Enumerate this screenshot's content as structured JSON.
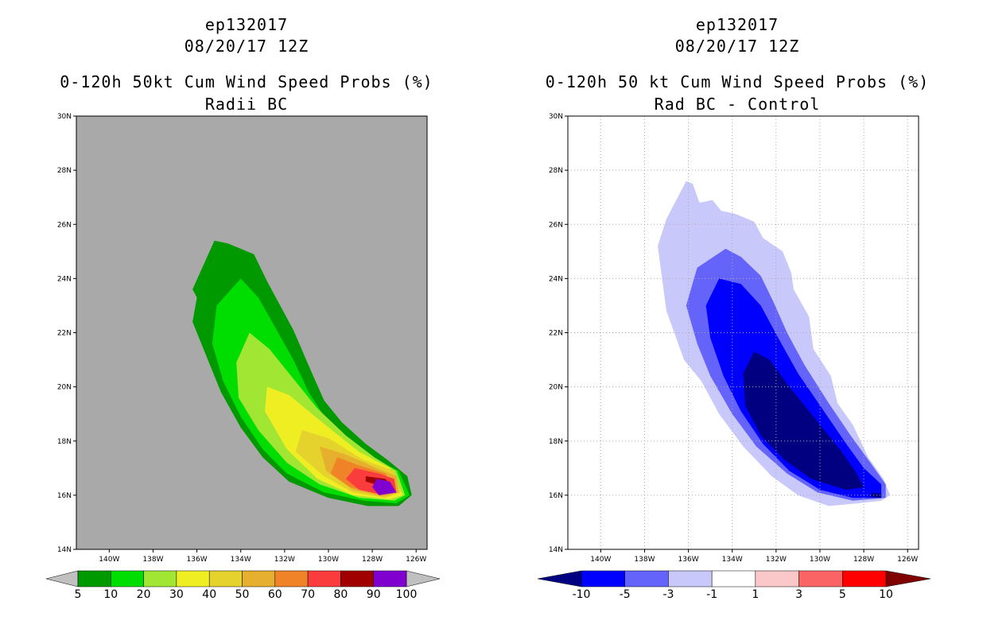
{
  "panels": [
    {
      "storm": "ep132017",
      "date": "08/20/17 12Z",
      "title": "0-120h 50kt Cum Wind Speed Probs (%)",
      "subtitle": "Radii BC"
    },
    {
      "storm": "ep132017",
      "date": "08/20/17 12Z",
      "title": "0-120h 50 kt Cum Wind Speed Probs (%)",
      "subtitle": "Rad BC - Control"
    }
  ],
  "chart_data": [
    {
      "type": "contour-map",
      "title": "0-120h 50kt Cum Wind Speed Probs (%)",
      "subtitle": "Radii BC",
      "x_ticks": [
        "140W",
        "138W",
        "136W",
        "134W",
        "132W",
        "130W",
        "128W",
        "126W"
      ],
      "y_ticks": [
        "14N",
        "16N",
        "18N",
        "20N",
        "22N",
        "24N",
        "26N",
        "28N",
        "30N"
      ],
      "xlim": [
        -141.5,
        -125.5
      ],
      "ylim": [
        14,
        30
      ],
      "background_color": "#a9a9a9",
      "colorbar": {
        "labels": [
          "5",
          "10",
          "20",
          "30",
          "40",
          "50",
          "60",
          "70",
          "80",
          "90",
          "100"
        ],
        "colors": [
          "#009900",
          "#00dd00",
          "#a0e632",
          "#eeee22",
          "#e6d22d",
          "#e6af2d",
          "#f08228",
          "#fa3c3c",
          "#a00000",
          "#8000d0"
        ],
        "end_colors": [
          "#c0c0c0",
          "#c0c0c0"
        ]
      },
      "levels": [
        {
          "threshold": 5,
          "color": "#009900",
          "poly": [
            [
              -135.2,
              25.4
            ],
            [
              -134.6,
              25.3
            ],
            [
              -133.4,
              24.9
            ],
            [
              -132.8,
              23.9
            ],
            [
              -131.6,
              22.1
            ],
            [
              -130.8,
              20.6
            ],
            [
              -130.2,
              19.5
            ],
            [
              -129.4,
              18.7
            ],
            [
              -128.3,
              17.9
            ],
            [
              -127.3,
              17.3
            ],
            [
              -126.4,
              16.7
            ],
            [
              -126.2,
              16.0
            ],
            [
              -126.8,
              15.6
            ],
            [
              -128.2,
              15.6
            ],
            [
              -130.0,
              15.9
            ],
            [
              -131.8,
              16.5
            ],
            [
              -133.0,
              17.4
            ],
            [
              -134.0,
              18.5
            ],
            [
              -134.9,
              19.8
            ],
            [
              -135.6,
              21.2
            ],
            [
              -136.2,
              22.4
            ],
            [
              -136.0,
              23.3
            ],
            [
              -136.2,
              23.6
            ],
            [
              -135.7,
              24.5
            ]
          ]
        },
        {
          "threshold": 10,
          "color": "#00dd00",
          "poly": [
            [
              -134.0,
              24.0
            ],
            [
              -133.2,
              23.3
            ],
            [
              -132.5,
              22.3
            ],
            [
              -131.6,
              21.0
            ],
            [
              -130.9,
              19.8
            ],
            [
              -130.1,
              18.8
            ],
            [
              -129.0,
              18.0
            ],
            [
              -127.8,
              17.3
            ],
            [
              -126.8,
              16.9
            ],
            [
              -126.3,
              16.0
            ],
            [
              -126.9,
              15.7
            ],
            [
              -128.4,
              15.8
            ],
            [
              -130.2,
              16.1
            ],
            [
              -131.9,
              16.8
            ],
            [
              -133.0,
              17.7
            ],
            [
              -134.0,
              18.9
            ],
            [
              -134.8,
              20.2
            ],
            [
              -135.3,
              21.6
            ],
            [
              -135.1,
              23.0
            ]
          ]
        },
        {
          "threshold": 20,
          "color": "#a0e632",
          "poly": [
            [
              -133.6,
              22.0
            ],
            [
              -132.7,
              21.4
            ],
            [
              -131.6,
              20.3
            ],
            [
              -130.5,
              19.2
            ],
            [
              -129.2,
              18.2
            ],
            [
              -127.9,
              17.4
            ],
            [
              -126.9,
              16.9
            ],
            [
              -126.5,
              16.0
            ],
            [
              -127.0,
              15.8
            ],
            [
              -128.6,
              15.9
            ],
            [
              -130.4,
              16.4
            ],
            [
              -131.9,
              17.2
            ],
            [
              -133.2,
              18.4
            ],
            [
              -134.1,
              19.6
            ],
            [
              -134.2,
              20.9
            ]
          ]
        },
        {
          "threshold": 30,
          "color": "#eeee22",
          "poly": [
            [
              -132.8,
              20.0
            ],
            [
              -131.8,
              19.7
            ],
            [
              -130.3,
              18.7
            ],
            [
              -128.6,
              17.6
            ],
            [
              -127.2,
              17.0
            ],
            [
              -126.6,
              16.0
            ],
            [
              -127.2,
              15.85
            ],
            [
              -128.9,
              16.0
            ],
            [
              -130.5,
              16.6
            ],
            [
              -131.9,
              17.7
            ],
            [
              -132.9,
              19.1
            ]
          ]
        },
        {
          "threshold": 40,
          "color": "#e6d22d",
          "poly": [
            [
              -131.2,
              18.4
            ],
            [
              -130.0,
              18.1
            ],
            [
              -128.4,
              17.3
            ],
            [
              -127.0,
              16.9
            ],
            [
              -126.7,
              16.1
            ],
            [
              -127.4,
              15.9
            ],
            [
              -128.9,
              16.1
            ],
            [
              -130.2,
              16.7
            ],
            [
              -131.5,
              17.6
            ]
          ]
        },
        {
          "threshold": 50,
          "color": "#e6af2d",
          "poly": [
            [
              -130.4,
              17.8
            ],
            [
              -129.2,
              17.5
            ],
            [
              -127.8,
              17.0
            ],
            [
              -126.9,
              16.7
            ],
            [
              -126.8,
              16.1
            ],
            [
              -127.5,
              15.95
            ],
            [
              -128.9,
              16.2
            ],
            [
              -130.1,
              16.9
            ]
          ]
        },
        {
          "threshold": 60,
          "color": "#f08228",
          "poly": [
            [
              -129.6,
              17.4
            ],
            [
              -128.6,
              17.1
            ],
            [
              -127.4,
              16.8
            ],
            [
              -126.9,
              16.1
            ],
            [
              -127.6,
              16.0
            ],
            [
              -129.0,
              16.3
            ],
            [
              -129.9,
              16.8
            ]
          ]
        },
        {
          "threshold": 70,
          "color": "#fa3c3c",
          "poly": [
            [
              -128.8,
              17.0
            ],
            [
              -127.7,
              16.8
            ],
            [
              -127.0,
              16.6
            ],
            [
              -126.9,
              16.1
            ],
            [
              -127.7,
              16.05
            ],
            [
              -128.6,
              16.2
            ],
            [
              -129.2,
              16.6
            ]
          ]
        },
        {
          "threshold": 80,
          "color": "#a00000",
          "poly": [
            [
              -128.3,
              16.7
            ],
            [
              -127.4,
              16.6
            ],
            [
              -127.2,
              16.4
            ],
            [
              -127.6,
              16.35
            ],
            [
              -128.3,
              16.5
            ]
          ]
        },
        {
          "threshold": 90,
          "color": "#8000d0",
          "poly": [
            [
              -127.8,
              16.6
            ],
            [
              -127.2,
              16.5
            ],
            [
              -126.9,
              16.1
            ],
            [
              -127.7,
              16.0
            ],
            [
              -128.0,
              16.3
            ]
          ]
        }
      ]
    },
    {
      "type": "contour-map",
      "title": "0-120h 50 kt Cum Wind Speed Probs (%)",
      "subtitle": "Rad BC - Control",
      "x_ticks": [
        "140W",
        "138W",
        "136W",
        "134W",
        "132W",
        "130W",
        "128W",
        "126W"
      ],
      "y_ticks": [
        "14N",
        "16N",
        "18N",
        "20N",
        "22N",
        "24N",
        "26N",
        "28N",
        "30N"
      ],
      "xlim": [
        -141.5,
        -125.5
      ],
      "ylim": [
        14,
        30
      ],
      "background_color": "#ffffff",
      "grid": true,
      "colorbar": {
        "labels": [
          "-10",
          "-5",
          "-3",
          "-1",
          "1",
          "3",
          "5",
          "10"
        ],
        "colors": [
          "#0000ff",
          "#6464fa",
          "#c8c8fa",
          "#ffffff",
          "#fac8c8",
          "#fa6464",
          "#ff0000"
        ],
        "end_colors": [
          "#000080",
          "#800000"
        ]
      },
      "levels": [
        {
          "threshold": -1,
          "color": "#c8c8fa",
          "poly": [
            [
              -136.1,
              27.6
            ],
            [
              -135.8,
              27.5
            ],
            [
              -135.5,
              26.8
            ],
            [
              -134.9,
              26.9
            ],
            [
              -134.5,
              26.5
            ],
            [
              -133.9,
              26.4
            ],
            [
              -133.0,
              26.1
            ],
            [
              -132.6,
              25.5
            ],
            [
              -131.7,
              25.0
            ],
            [
              -131.3,
              24.2
            ],
            [
              -131.2,
              23.6
            ],
            [
              -130.5,
              22.6
            ],
            [
              -130.3,
              21.4
            ],
            [
              -129.5,
              20.4
            ],
            [
              -129.2,
              19.4
            ],
            [
              -128.5,
              18.6
            ],
            [
              -127.8,
              17.4
            ],
            [
              -127.1,
              16.6
            ],
            [
              -126.8,
              16.0
            ],
            [
              -127.2,
              15.8
            ],
            [
              -128.3,
              15.7
            ],
            [
              -129.6,
              15.6
            ],
            [
              -131.0,
              16.0
            ],
            [
              -132.2,
              16.7
            ],
            [
              -133.5,
              17.8
            ],
            [
              -134.6,
              19.0
            ],
            [
              -135.4,
              20.2
            ],
            [
              -136.2,
              21.0
            ],
            [
              -137.0,
              22.8
            ],
            [
              -137.2,
              24.0
            ],
            [
              -137.4,
              25.2
            ],
            [
              -137.0,
              26.2
            ]
          ]
        },
        {
          "threshold": -3,
          "color": "#6464fa",
          "poly": [
            [
              -134.3,
              25.1
            ],
            [
              -133.6,
              24.8
            ],
            [
              -132.7,
              24.1
            ],
            [
              -132.1,
              23.1
            ],
            [
              -131.5,
              22.0
            ],
            [
              -130.7,
              20.8
            ],
            [
              -129.6,
              19.4
            ],
            [
              -128.6,
              18.2
            ],
            [
              -127.7,
              17.2
            ],
            [
              -127.0,
              16.4
            ],
            [
              -127.0,
              15.9
            ],
            [
              -128.5,
              15.8
            ],
            [
              -130.1,
              16.1
            ],
            [
              -131.5,
              16.8
            ],
            [
              -132.9,
              17.8
            ],
            [
              -134.0,
              19.0
            ],
            [
              -135.0,
              20.4
            ],
            [
              -135.6,
              21.6
            ],
            [
              -136.1,
              23.0
            ],
            [
              -135.6,
              24.4
            ]
          ]
        },
        {
          "threshold": -5,
          "color": "#0000ff",
          "poly": [
            [
              -134.6,
              24.0
            ],
            [
              -133.6,
              23.8
            ],
            [
              -132.7,
              23.0
            ],
            [
              -131.9,
              21.8
            ],
            [
              -131.0,
              20.5
            ],
            [
              -129.9,
              19.2
            ],
            [
              -128.8,
              17.9
            ],
            [
              -128.0,
              17.0
            ],
            [
              -127.2,
              16.4
            ],
            [
              -127.2,
              15.9
            ],
            [
              -128.5,
              15.9
            ],
            [
              -130.0,
              16.2
            ],
            [
              -131.4,
              16.9
            ],
            [
              -132.6,
              17.9
            ],
            [
              -133.6,
              19.1
            ],
            [
              -134.4,
              20.4
            ],
            [
              -135.0,
              21.8
            ],
            [
              -135.2,
              23.0
            ]
          ]
        },
        {
          "threshold": -10,
          "color": "#000080",
          "poly": [
            [
              -133.0,
              21.3
            ],
            [
              -132.3,
              21.0
            ],
            [
              -131.3,
              19.9
            ],
            [
              -130.2,
              18.8
            ],
            [
              -129.1,
              17.7
            ],
            [
              -128.4,
              16.9
            ],
            [
              -128.0,
              16.3
            ],
            [
              -128.8,
              16.2
            ],
            [
              -130.4,
              16.6
            ],
            [
              -131.6,
              17.3
            ],
            [
              -132.7,
              18.2
            ],
            [
              -133.4,
              19.3
            ],
            [
              -133.5,
              20.5
            ]
          ]
        },
        {
          "threshold": -10,
          "color": "#000080",
          "poly": [
            [
              -127.6,
              16.1
            ],
            [
              -127.2,
              16.05
            ],
            [
              -127.2,
              15.9
            ],
            [
              -127.7,
              15.95
            ]
          ]
        }
      ]
    }
  ]
}
